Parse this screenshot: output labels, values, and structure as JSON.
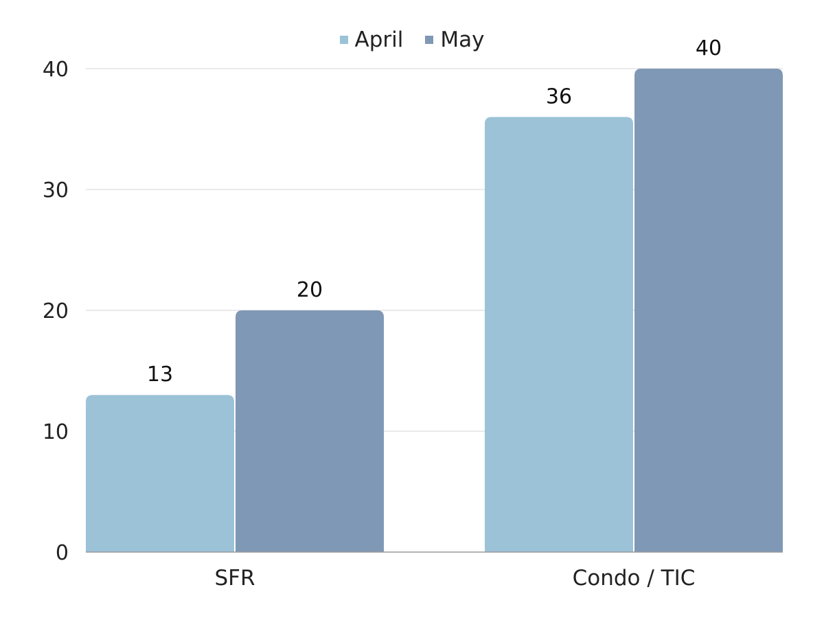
{
  "chart_data": {
    "type": "bar",
    "categories": [
      "SFR",
      "Condo / TIC"
    ],
    "series": [
      {
        "name": "April",
        "values": [
          13,
          36
        ],
        "color": "#9bc2d7"
      },
      {
        "name": "May",
        "values": [
          20,
          40
        ],
        "color": "#7f98b5"
      }
    ],
    "title": "",
    "xlabel": "",
    "ylabel": "",
    "ylim": [
      0,
      40
    ],
    "yticks": [
      0,
      10,
      20,
      30,
      40
    ],
    "data_labels": true,
    "grid": true,
    "legend_position": "top-center"
  }
}
